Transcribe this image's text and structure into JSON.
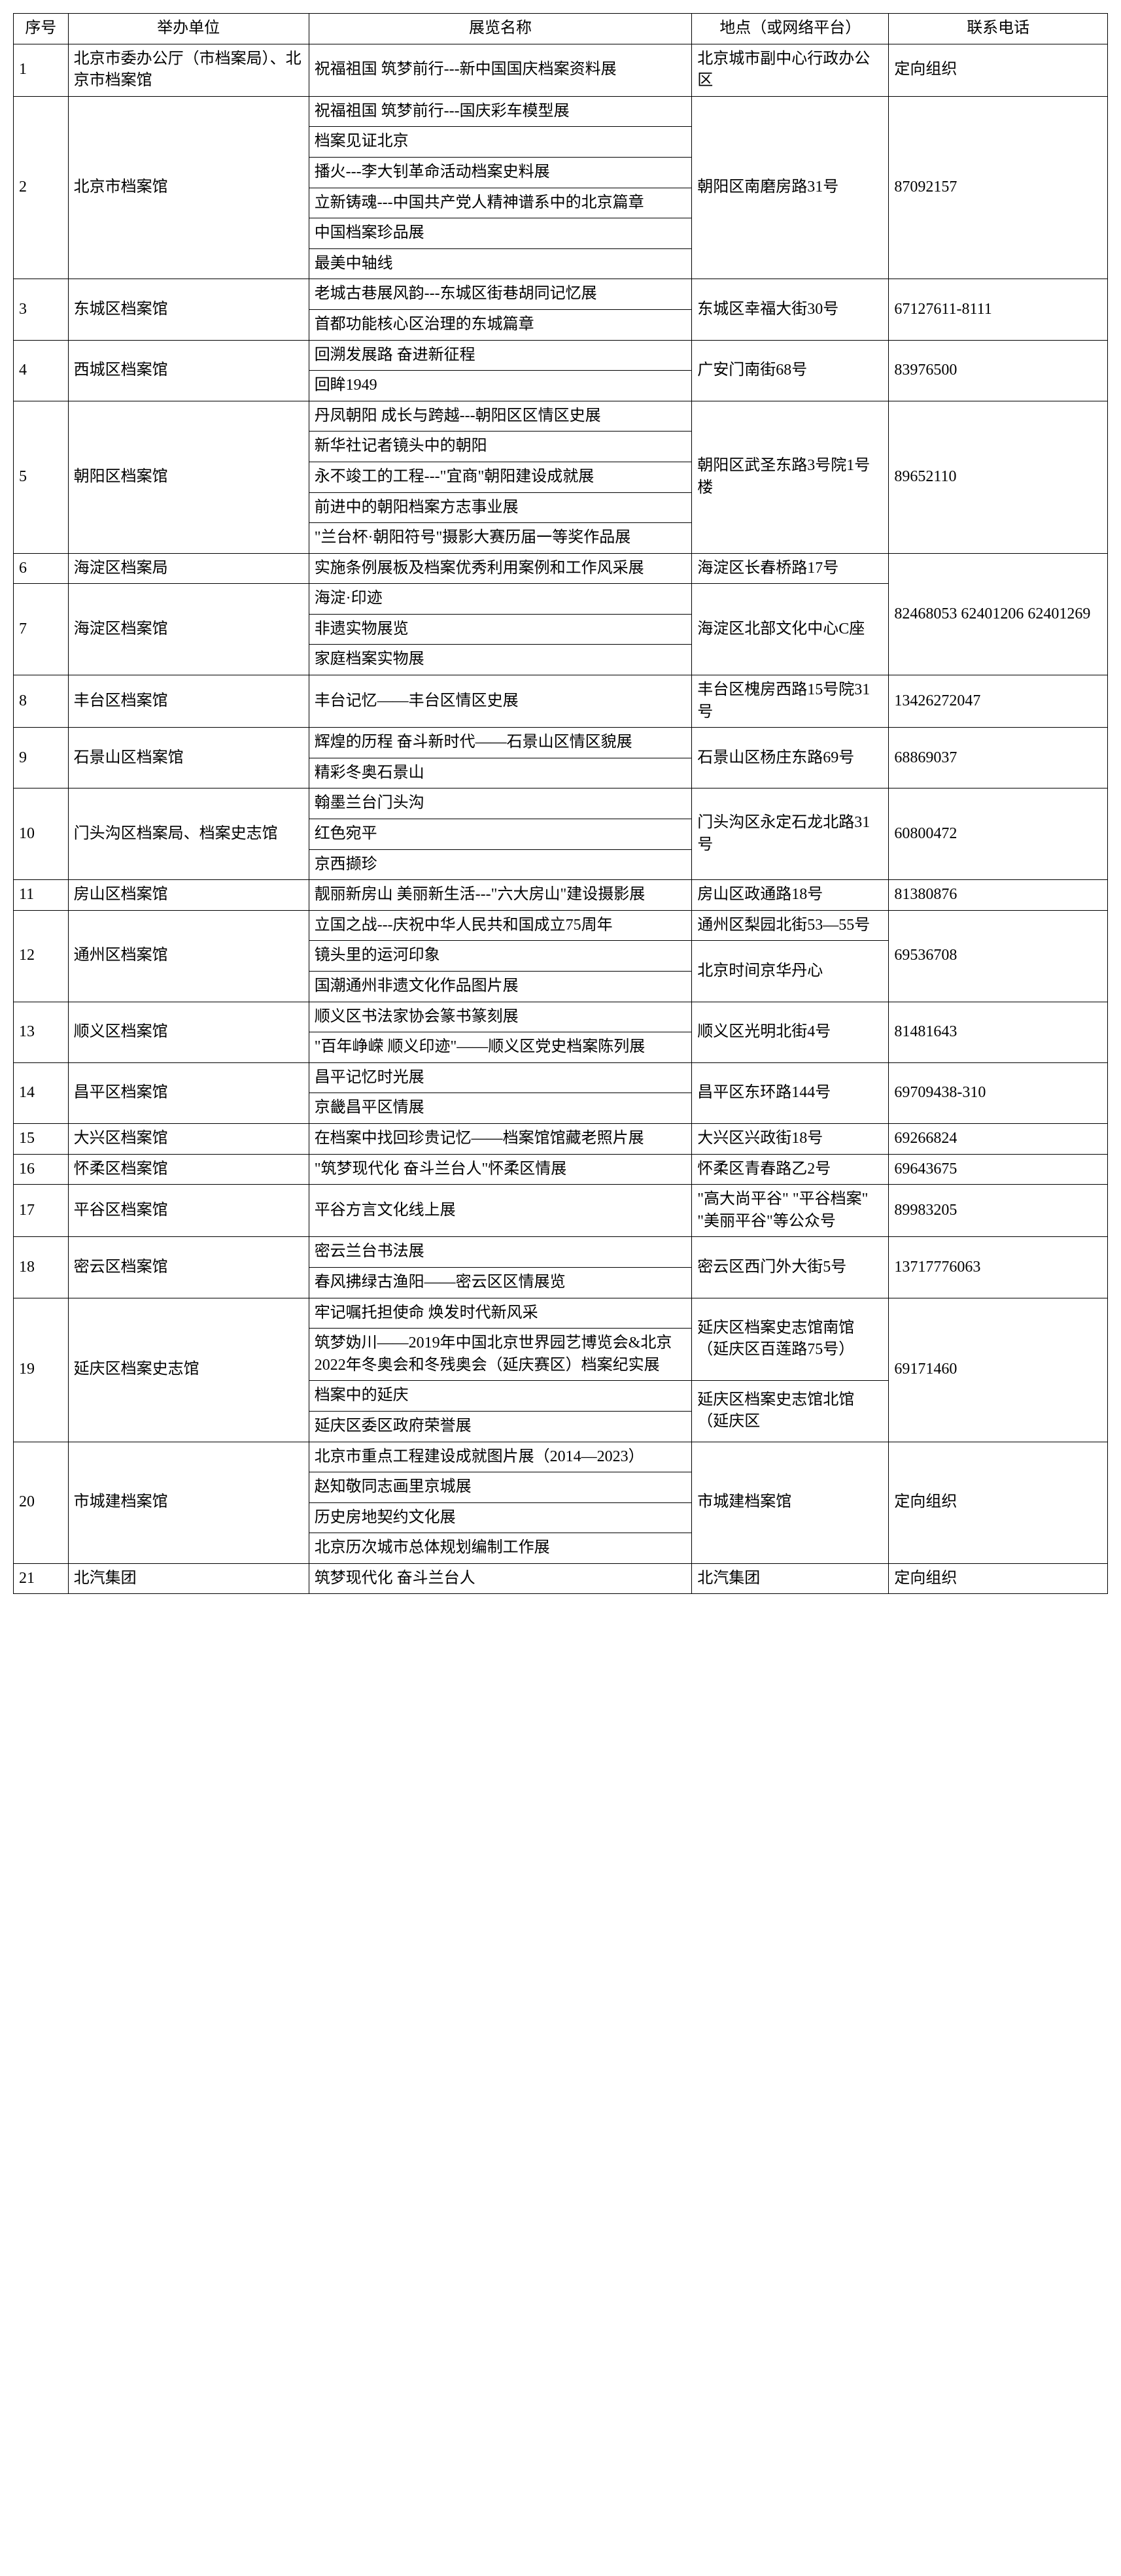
{
  "columns": [
    "序号",
    "举办单位",
    "展览名称",
    "地点（或网络平台）",
    "联系电话"
  ],
  "rows": [
    {
      "seq": "1",
      "org": "北京市委办公厅（市档案局）、北京市档案馆",
      "exh": [
        "祝福祖国 筑梦前行---新中国国庆档案资料展"
      ],
      "loc": [
        "北京城市副中心行政办公区"
      ],
      "tel": "定向组织",
      "locSpans": [
        1
      ]
    },
    {
      "seq": "2",
      "org": "北京市档案馆",
      "exh": [
        "祝福祖国 筑梦前行---国庆彩车模型展",
        "档案见证北京",
        "播火---李大钊革命活动档案史料展",
        "立新铸魂---中国共产党人精神谱系中的北京篇章",
        "中国档案珍品展",
        "最美中轴线"
      ],
      "loc": [
        "朝阳区南磨房路31号"
      ],
      "tel": "87092157",
      "locSpans": [
        6
      ]
    },
    {
      "seq": "3",
      "org": "东城区档案馆",
      "exh": [
        "老城古巷展风韵---东城区街巷胡同记忆展",
        "首都功能核心区治理的东城篇章"
      ],
      "loc": [
        "东城区幸福大街30号"
      ],
      "tel": "67127611-8111",
      "locSpans": [
        2
      ]
    },
    {
      "seq": "4",
      "org": "西城区档案馆",
      "exh": [
        "回溯发展路 奋进新征程",
        "回眸1949"
      ],
      "loc": [
        "广安门南街68号"
      ],
      "tel": "83976500",
      "locSpans": [
        2
      ]
    },
    {
      "seq": "5",
      "org": "朝阳区档案馆",
      "exh": [
        "丹凤朝阳 成长与跨越---朝阳区区情区史展",
        "新华社记者镜头中的朝阳",
        "永不竣工的工程---\"宜商\"朝阳建设成就展",
        "前进中的朝阳档案方志事业展",
        "\"兰台杯·朝阳符号\"摄影大赛历届一等奖作品展"
      ],
      "loc": [
        "朝阳区武圣东路3号院1号楼"
      ],
      "tel": "89652110",
      "locSpans": [
        5
      ]
    },
    {
      "seq": "6",
      "org": "海淀区档案局",
      "exh": [
        "实施条例展板及档案优秀利用案例和工作风采展"
      ],
      "loc": [
        "海淀区长春桥路17号"
      ],
      "tel": "82468053 62401206 62401269",
      "locSpans": [
        1
      ],
      "telRowSpan": 2
    },
    {
      "seq": "7",
      "org": "海淀区档案馆",
      "exh": [
        "海淀·印迹",
        "非遗实物展览",
        "家庭档案实物展"
      ],
      "loc": [
        "海淀区北部文化中心C座"
      ],
      "locSpans": [
        3
      ],
      "telSkip": true
    },
    {
      "seq": "8",
      "org": "丰台区档案馆",
      "exh": [
        "丰台记忆——丰台区情区史展"
      ],
      "loc": [
        "丰台区槐房西路15号院31号"
      ],
      "tel": "13426272047",
      "locSpans": [
        1
      ]
    },
    {
      "seq": "9",
      "org": "石景山区档案馆",
      "exh": [
        "辉煌的历程 奋斗新时代——石景山区情区貌展",
        "精彩冬奥石景山"
      ],
      "loc": [
        "石景山区杨庄东路69号"
      ],
      "tel": "68869037",
      "locSpans": [
        2
      ]
    },
    {
      "seq": "10",
      "org": "门头沟区档案局、档案史志馆",
      "exh": [
        "翰墨兰台门头沟",
        "红色宛平",
        "京西撷珍"
      ],
      "loc": [
        "门头沟区永定石龙北路31号"
      ],
      "tel": "60800472",
      "locSpans": [
        3
      ]
    },
    {
      "seq": "11",
      "org": "房山区档案馆",
      "exh": [
        "靓丽新房山 美丽新生活---\"六大房山\"建设摄影展"
      ],
      "loc": [
        "房山区政通路18号"
      ],
      "tel": "81380876",
      "locSpans": [
        1
      ]
    },
    {
      "seq": "12",
      "org": "通州区档案馆",
      "exh": [
        "立国之战---庆祝中华人民共和国成立75周年",
        "镜头里的运河印象",
        "国潮通州非遗文化作品图片展"
      ],
      "loc": [
        "通州区梨园北街53—55号",
        "北京时间京华丹心"
      ],
      "tel": "69536708",
      "locSpans": [
        1,
        2
      ]
    },
    {
      "seq": "13",
      "org": "顺义区档案馆",
      "exh": [
        "顺义区书法家协会篆书篆刻展",
        "\"百年峥嵘 顺义印迹\"——顺义区党史档案陈列展"
      ],
      "loc": [
        "顺义区光明北街4号"
      ],
      "tel": "81481643",
      "locSpans": [
        2
      ]
    },
    {
      "seq": "14",
      "org": "昌平区档案馆",
      "exh": [
        "昌平记忆时光展",
        "京畿昌平区情展"
      ],
      "loc": [
        "昌平区东环路144号"
      ],
      "tel": "69709438-310",
      "locSpans": [
        2
      ]
    },
    {
      "seq": "15",
      "org": "大兴区档案馆",
      "exh": [
        "在档案中找回珍贵记忆——档案馆馆藏老照片展"
      ],
      "loc": [
        "大兴区兴政街18号"
      ],
      "tel": "69266824",
      "locSpans": [
        1
      ]
    },
    {
      "seq": "16",
      "org": "怀柔区档案馆",
      "exh": [
        "\"筑梦现代化 奋斗兰台人\"怀柔区情展"
      ],
      "loc": [
        "怀柔区青春路乙2号"
      ],
      "tel": "69643675",
      "locSpans": [
        1
      ]
    },
    {
      "seq": "17",
      "org": "平谷区档案馆",
      "exh": [
        "平谷方言文化线上展"
      ],
      "loc": [
        "\"高大尚平谷\" \"平谷档案\" \"美丽平谷\"等公众号"
      ],
      "tel": "89983205",
      "locSpans": [
        1
      ]
    },
    {
      "seq": "18",
      "org": "密云区档案馆",
      "exh": [
        "密云兰台书法展",
        "春风拂绿古渔阳——密云区区情展览"
      ],
      "loc": [
        "密云区西门外大街5号"
      ],
      "tel": "13717776063",
      "locSpans": [
        2
      ]
    },
    {
      "seq": "19",
      "org": "延庆区档案史志馆",
      "exh": [
        "牢记嘱托担使命 焕发时代新风采",
        "筑梦妫川——2019年中国北京世界园艺博览会&北京2022年冬奥会和冬残奥会（延庆赛区）档案纪实展",
        "档案中的延庆",
        "延庆区委区政府荣誉展"
      ],
      "loc": [
        "延庆区档案史志馆南馆（延庆区百莲路75号）",
        "延庆区档案史志馆北馆（延庆区"
      ],
      "tel": "69171460",
      "locSpans": [
        2,
        2
      ]
    },
    {
      "seq": "20",
      "org": "市城建档案馆",
      "exh": [
        "北京市重点工程建设成就图片展（2014—2023）",
        "赵知敬同志画里京城展",
        "历史房地契约文化展",
        "北京历次城市总体规划编制工作展"
      ],
      "loc": [
        "市城建档案馆"
      ],
      "tel": "定向组织",
      "locSpans": [
        4
      ]
    },
    {
      "seq": "21",
      "org": "北汽集团",
      "exh": [
        "筑梦现代化 奋斗兰台人"
      ],
      "loc": [
        "北汽集团"
      ],
      "tel": "定向组织",
      "locSpans": [
        1
      ]
    }
  ]
}
